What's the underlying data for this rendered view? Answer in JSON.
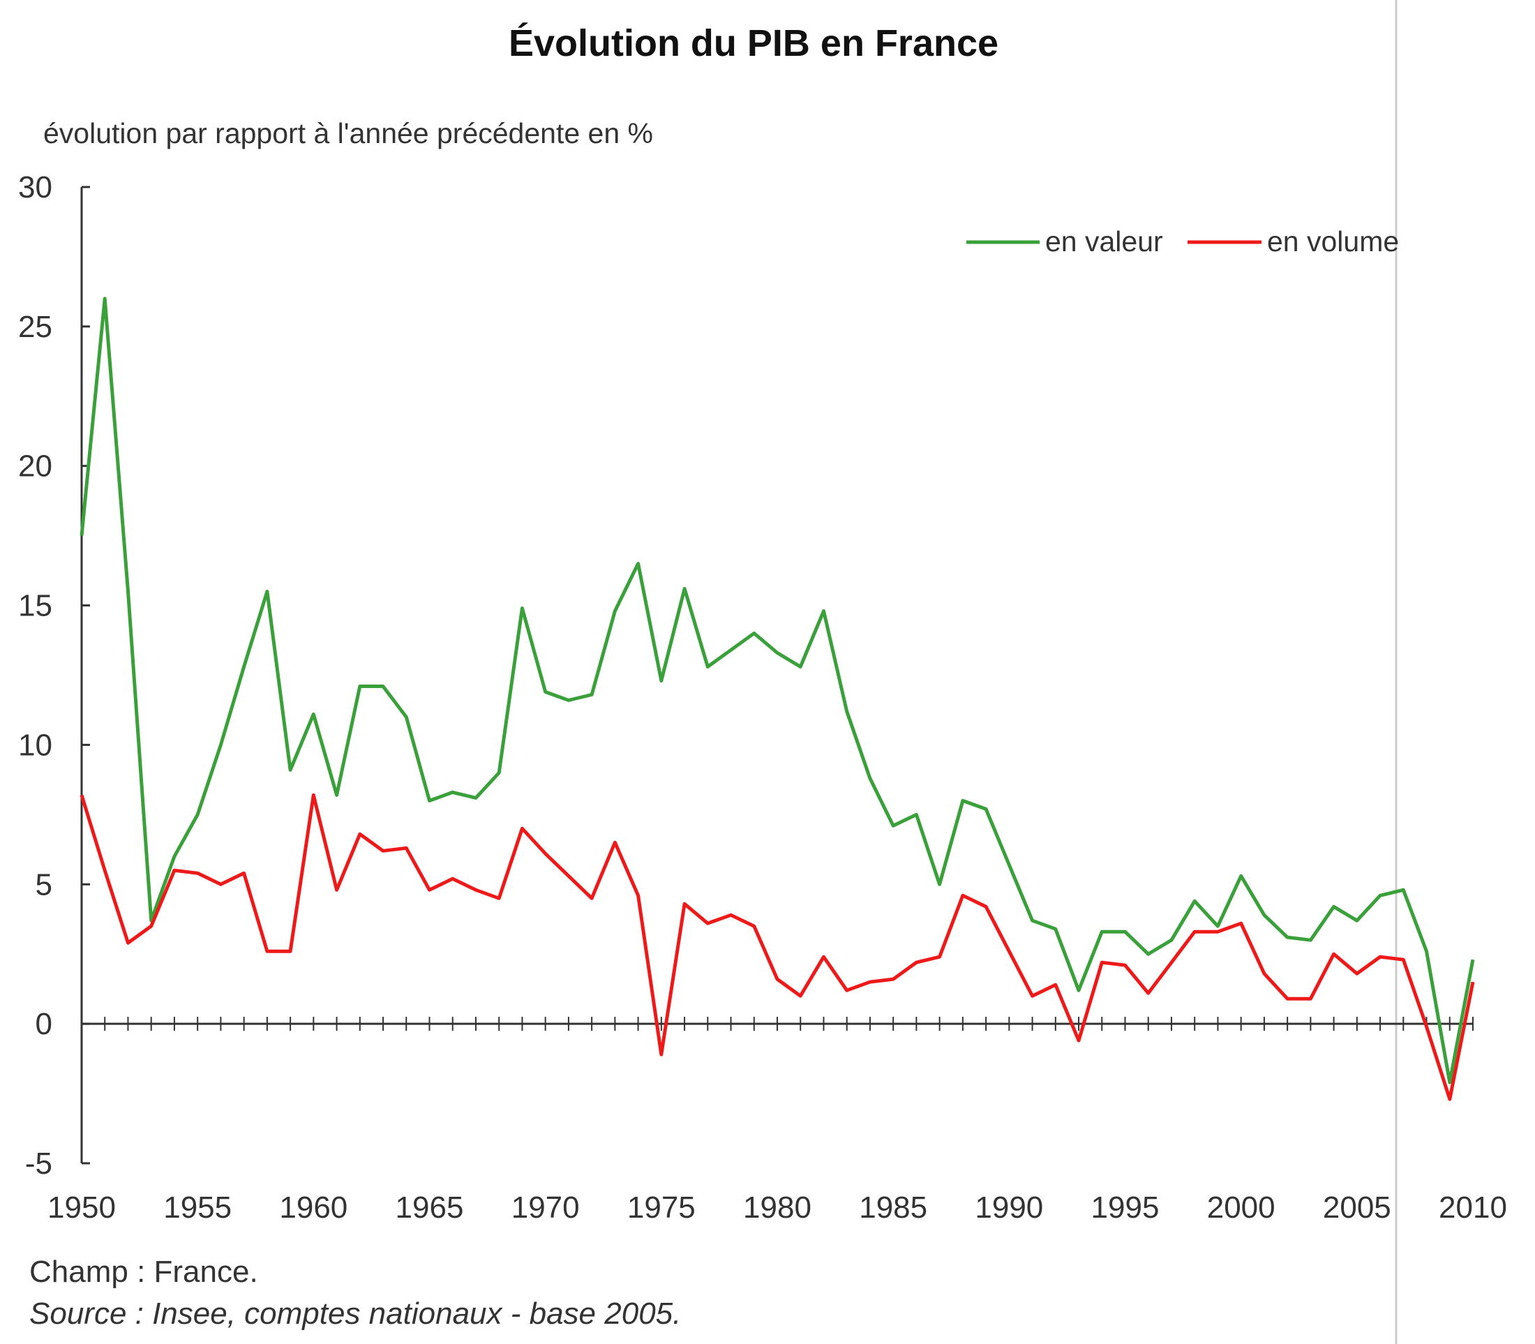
{
  "chart_data": {
    "type": "line",
    "title": "Évolution du PIB en France",
    "subtitle": "évolution par rapport à l'année précédente en %",
    "xlabel": "",
    "ylabel": "",
    "xlim": [
      1950,
      2010
    ],
    "ylim": [
      -5,
      30
    ],
    "y_ticks": [
      "30",
      "25",
      "20",
      "15",
      "10",
      "5",
      "0",
      "-5"
    ],
    "x_ticks": [
      "1950",
      "1955",
      "1960",
      "1965",
      "1970",
      "1975",
      "1980",
      "1985",
      "1990",
      "1995",
      "2000",
      "2005",
      "2010"
    ],
    "grid": false,
    "legend_position": "top-right",
    "x": [
      1950,
      1951,
      1952,
      1953,
      1954,
      1955,
      1956,
      1957,
      1958,
      1959,
      1960,
      1961,
      1962,
      1963,
      1964,
      1965,
      1966,
      1967,
      1968,
      1969,
      1970,
      1971,
      1972,
      1973,
      1974,
      1975,
      1976,
      1977,
      1978,
      1979,
      1980,
      1981,
      1982,
      1983,
      1984,
      1985,
      1986,
      1987,
      1988,
      1989,
      1990,
      1991,
      1992,
      1993,
      1994,
      1995,
      1996,
      1997,
      1998,
      1999,
      2000,
      2001,
      2002,
      2003,
      2004,
      2005,
      2006,
      2007,
      2008,
      2009,
      2010
    ],
    "series": [
      {
        "name": "en valeur",
        "color": "#3aa03a",
        "values": [
          17.5,
          26.0,
          15.5,
          3.7,
          6.0,
          7.5,
          10.0,
          12.8,
          15.5,
          9.1,
          11.1,
          8.2,
          12.1,
          12.1,
          11.0,
          8.0,
          8.3,
          8.1,
          9.0,
          14.9,
          11.9,
          11.6,
          11.8,
          14.8,
          16.5,
          12.3,
          15.6,
          12.8,
          13.4,
          14.0,
          13.3,
          12.8,
          14.8,
          11.2,
          8.8,
          7.1,
          7.5,
          5.0,
          8.0,
          7.7,
          5.7,
          3.7,
          3.4,
          1.2,
          3.3,
          3.3,
          2.5,
          3.0,
          4.4,
          3.5,
          5.3,
          3.9,
          3.1,
          3.0,
          4.2,
          3.7,
          4.6,
          4.8,
          2.6,
          -2.1,
          2.3
        ]
      },
      {
        "name": "en volume",
        "color": "#ee1a1a",
        "values": [
          8.2,
          5.5,
          2.9,
          3.5,
          5.5,
          5.4,
          5.0,
          5.4,
          2.6,
          2.6,
          8.2,
          4.8,
          6.8,
          6.2,
          6.3,
          4.8,
          5.2,
          4.8,
          4.5,
          7.0,
          6.1,
          5.3,
          4.5,
          6.5,
          4.6,
          -1.1,
          4.3,
          3.6,
          3.9,
          3.5,
          1.6,
          1.0,
          2.4,
          1.2,
          1.5,
          1.6,
          2.2,
          2.4,
          4.6,
          4.2,
          2.6,
          1.0,
          1.4,
          -0.6,
          2.2,
          2.1,
          1.1,
          2.2,
          3.3,
          3.3,
          3.6,
          1.8,
          0.9,
          0.9,
          2.5,
          1.8,
          2.4,
          2.3,
          -0.1,
          -2.7,
          1.5
        ]
      }
    ],
    "notes": {
      "champ": "Champ : France.",
      "source": "Source : Insee, comptes nationaux - base 2005."
    }
  }
}
